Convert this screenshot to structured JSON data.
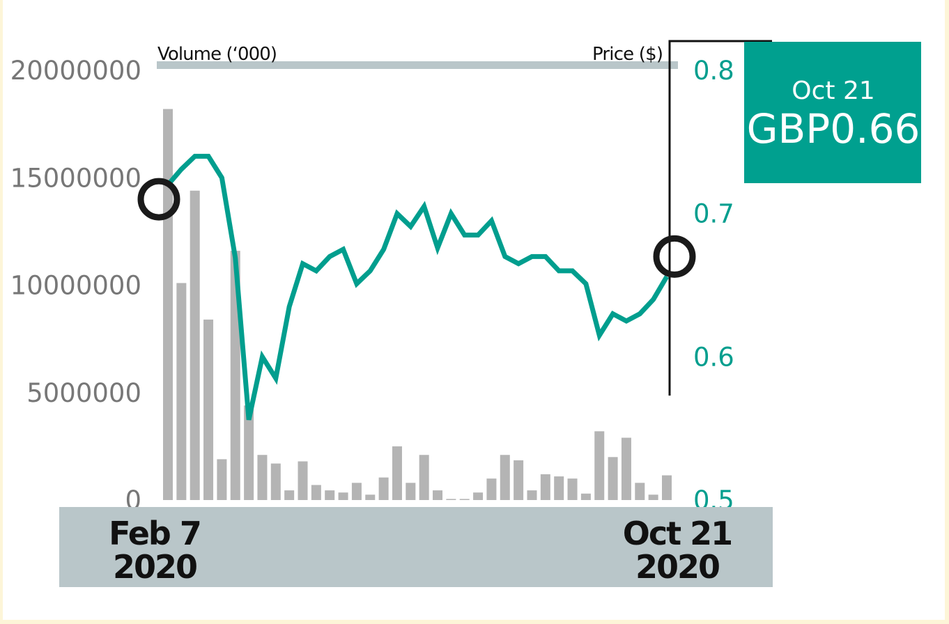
{
  "chart_data": {
    "type": "bar+line",
    "left_axis_label": "Volume (‘000)",
    "right_axis_label": "Price ($)",
    "volume_ylim": [
      0,
      20000000
    ],
    "volume_ticks": [
      "20000000",
      "15000000",
      "10000000",
      "5000000",
      "0"
    ],
    "volume_tick_values": [
      20000000,
      15000000,
      10000000,
      5000000,
      0
    ],
    "price_ylim": [
      0.5,
      0.8
    ],
    "price_ticks": [
      "0.8",
      "0.7",
      "0.6",
      "0.5"
    ],
    "price_tick_values": [
      0.8,
      0.7,
      0.6,
      0.5
    ],
    "x_start_label": [
      "Feb 7",
      "2020"
    ],
    "x_end_label": [
      "Oct 21",
      "2020"
    ],
    "volume": [
      18200000,
      10100000,
      14400000,
      8400000,
      1900000,
      11600000,
      4400000,
      2100000,
      1700000,
      450000,
      1800000,
      700000,
      450000,
      350000,
      800000,
      250000,
      1050000,
      2500000,
      800000,
      2100000,
      450000,
      50000,
      50000,
      350000,
      1000000,
      2100000,
      1850000,
      450000,
      1200000,
      1100000,
      1000000,
      300000,
      3200000,
      2000000,
      2900000,
      800000,
      250000,
      1150000
    ],
    "price": [
      0.72,
      0.731,
      0.74,
      0.74,
      0.725,
      0.669,
      0.556,
      0.6,
      0.585,
      0.635,
      0.665,
      0.66,
      0.67,
      0.675,
      0.651,
      0.66,
      0.675,
      0.7,
      0.691,
      0.705,
      0.676,
      0.7,
      0.685,
      0.685,
      0.695,
      0.67,
      0.665,
      0.67,
      0.67,
      0.66,
      0.66,
      0.651,
      0.615,
      0.63,
      0.625,
      0.63,
      0.64,
      0.656
    ],
    "start_marker_price": 0.71,
    "end_marker_price": 0.67,
    "callout": {
      "date": "Oct 21",
      "value": "GBP0.66"
    }
  },
  "colors": {
    "price_line": "#009e8e",
    "bars": "#b4b4b4",
    "band": "#b9c6c9",
    "callout": "#00a08f"
  }
}
